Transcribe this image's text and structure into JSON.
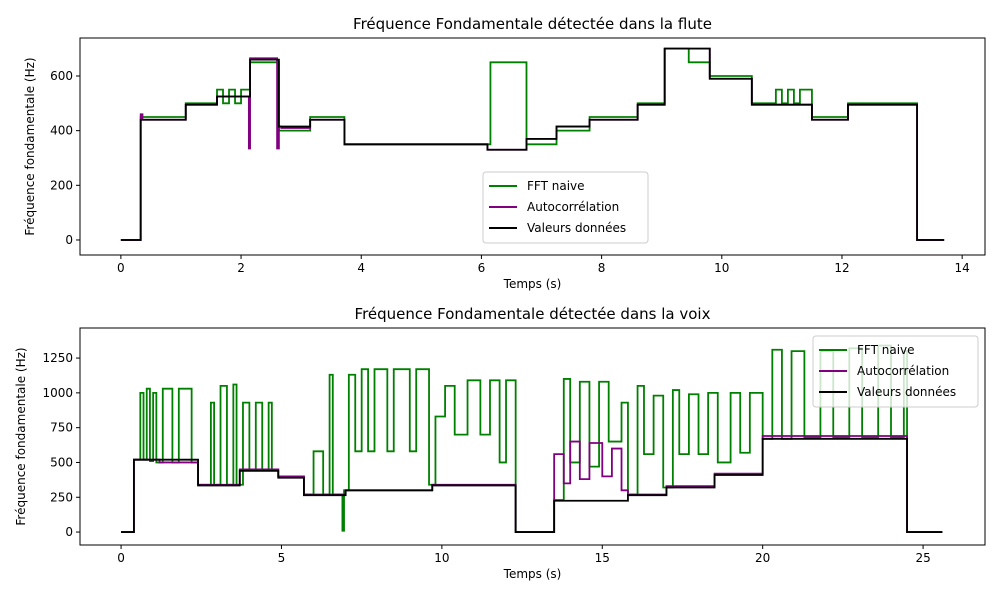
{
  "chart_data": [
    {
      "type": "line",
      "step": "post",
      "title": "Fréquence Fondamentale détectée dans la flute",
      "xlabel": "Temps (s)",
      "ylabel": "Fréquence fondamentale (Hz)",
      "xlim": [
        -0.68,
        14.38
      ],
      "ylim": [
        -55,
        739
      ],
      "xticks": [
        0,
        2,
        4,
        6,
        8,
        10,
        12,
        14
      ],
      "yticks": [
        0,
        200,
        400,
        600
      ],
      "legend": "lower center",
      "series": [
        {
          "name": "FFT naive",
          "color": "#008000",
          "x": [
            0,
            0.33,
            1.08,
            1.6,
            1.7,
            1.8,
            1.9,
            2.0,
            2.15,
            2.63,
            3.15,
            3.72,
            6.15,
            6.75,
            7.25,
            7.8,
            8.6,
            9.05,
            9.45,
            9.8,
            10.5,
            10.9,
            11.0,
            11.1,
            11.2,
            11.3,
            11.5,
            12.1,
            13.25,
            13.7
          ],
          "values": [
            0,
            450,
            500,
            550,
            500,
            550,
            500,
            550,
            650,
            400,
            450,
            350,
            650,
            350,
            400,
            450,
            500,
            700,
            650,
            600,
            500,
            550,
            500,
            550,
            500,
            550,
            450,
            500,
            0,
            0
          ]
        },
        {
          "name": "Autocorrélation",
          "color": "#800080",
          "x": [
            0,
            0.33,
            0.36,
            1.08,
            1.6,
            2.13,
            2.15,
            2.18,
            2.6,
            2.63,
            2.67,
            3.15,
            3.72,
            6.1,
            6.75,
            7.25,
            7.8,
            8.6,
            9.05,
            9.8,
            10.5,
            11.5,
            12.1,
            13.25,
            13.7
          ],
          "values": [
            0,
            460,
            440,
            495,
            525,
            335,
            665,
            665,
            335,
            415,
            410,
            440,
            350,
            330,
            370,
            415,
            440,
            495,
            700,
            590,
            495,
            440,
            495,
            0,
            0
          ]
        },
        {
          "name": "Valeurs données",
          "color": "#000000",
          "x": [
            0,
            0.33,
            1.08,
            1.6,
            2.15,
            2.63,
            3.15,
            3.72,
            6.1,
            6.75,
            7.25,
            7.8,
            8.6,
            9.05,
            9.8,
            10.5,
            11.5,
            12.1,
            13.25,
            13.7
          ],
          "values": [
            0,
            440,
            495,
            525,
            660,
            415,
            440,
            350,
            330,
            370,
            415,
            440,
            495,
            700,
            590,
            495,
            440,
            495,
            0,
            0
          ]
        }
      ]
    },
    {
      "type": "line",
      "step": "post",
      "title": "Fréquence Fondamentale détectée dans la voix",
      "xlabel": "Temps (s)",
      "ylabel": "Fréquence fondamentale (Hz)",
      "xlim": [
        -1.28,
        26.93
      ],
      "ylim": [
        -93,
        1466
      ],
      "xticks": [
        0,
        5,
        10,
        15,
        20,
        25
      ],
      "yticks": [
        0,
        250,
        500,
        750,
        1000,
        1250
      ],
      "legend": "upper right",
      "series": [
        {
          "name": "FFT naive",
          "color": "#008000",
          "x": [
            0,
            0.4,
            0.6,
            0.7,
            0.8,
            0.9,
            1.0,
            1.1,
            1.3,
            1.6,
            1.8,
            2.2,
            2.4,
            2.8,
            2.9,
            3.1,
            3.3,
            3.5,
            3.6,
            3.8,
            4.0,
            4.2,
            4.4,
            4.6,
            4.7,
            4.9,
            5.7,
            6.0,
            6.3,
            6.5,
            6.6,
            6.9,
            6.95,
            7.1,
            7.3,
            7.5,
            7.7,
            7.9,
            8.3,
            8.5,
            9.0,
            9.2,
            9.6,
            9.8,
            10.1,
            10.4,
            10.8,
            11.2,
            11.5,
            11.8,
            12.0,
            12.3,
            13.5,
            13.8,
            14.0,
            14.3,
            14.6,
            14.9,
            15.2,
            15.6,
            15.8,
            16.1,
            16.3,
            16.6,
            16.9,
            17.2,
            17.4,
            17.7,
            18.0,
            18.3,
            18.6,
            19.0,
            19.3,
            19.6,
            20.0,
            20.3,
            20.6,
            20.9,
            21.3,
            21.8,
            22.2,
            22.7,
            23.1,
            23.6,
            24.0,
            24.4,
            24.5,
            25.6
          ],
          "values": [
            0,
            520,
            1000,
            520,
            1030,
            510,
            1000,
            500,
            1030,
            500,
            1030,
            500,
            340,
            930,
            340,
            1050,
            340,
            1060,
            340,
            930,
            450,
            930,
            450,
            930,
            450,
            400,
            270,
            580,
            270,
            1130,
            270,
            10,
            300,
            1130,
            580,
            1170,
            580,
            1170,
            580,
            1170,
            580,
            1170,
            340,
            830,
            1050,
            700,
            1090,
            700,
            1090,
            500,
            1090,
            0,
            230,
            1100,
            500,
            1080,
            470,
            1080,
            650,
            930,
            270,
            1050,
            560,
            980,
            320,
            1020,
            560,
            990,
            560,
            1000,
            500,
            1000,
            570,
            1000,
            670,
            1310,
            670,
            1300,
            680,
            1300,
            680,
            1320,
            680,
            1340,
            680,
            1300,
            0,
            0
          ]
        },
        {
          "name": "Autocorrélation",
          "color": "#800080",
          "x": [
            0,
            0.4,
            1.2,
            2.4,
            3.7,
            4.9,
            5.7,
            7,
            9.7,
            12.3,
            13.5,
            13.8,
            14.0,
            14.3,
            14.6,
            15.0,
            15.3,
            15.6,
            15.8,
            17,
            18.5,
            20,
            24.5,
            25.6
          ],
          "values": [
            0,
            520,
            500,
            340,
            450,
            400,
            270,
            300,
            340,
            0,
            560,
            350,
            650,
            380,
            640,
            400,
            600,
            300,
            270,
            330,
            420,
            690,
            0,
            0
          ]
        },
        {
          "name": "Valeurs données",
          "color": "#000000",
          "x": [
            0,
            0.4,
            2.4,
            3.7,
            4.9,
            5.7,
            7,
            9.7,
            12.3,
            13.5,
            15.8,
            17,
            18.5,
            20,
            24.5,
            25.6
          ],
          "values": [
            0,
            520,
            335,
            440,
            390,
            265,
            300,
            335,
            0,
            225,
            265,
            320,
            410,
            670,
            0,
            0
          ]
        }
      ]
    }
  ]
}
